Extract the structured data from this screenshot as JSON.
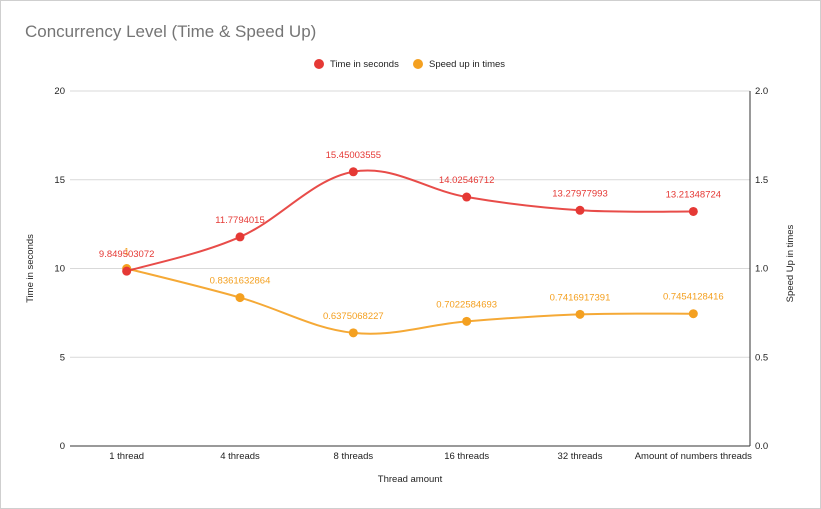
{
  "chart_data": {
    "type": "line",
    "title": "Concurrency Level (Time & Speed Up)",
    "xlabel": "Thread amount",
    "ylabel_left": "Time in seconds",
    "ylabel_right": "Speed Up in times",
    "categories": [
      "1 thread",
      "4 threads",
      "8 threads",
      "16 threads",
      "32 threads",
      "Amount of numbers threads"
    ],
    "ylim_left": [
      0,
      20
    ],
    "yticks_left": [
      "0",
      "5",
      "10",
      "15",
      "20"
    ],
    "ylim_right": [
      0,
      2.0
    ],
    "yticks_right": [
      "0.0",
      "0.5",
      "1.0",
      "1.5",
      "2.0"
    ],
    "grid": true,
    "legend_position": "top",
    "series": [
      {
        "name": "Time in seconds",
        "axis": "left",
        "color": "#e53935",
        "values": [
          9.849503072,
          11.7794015,
          15.45003555,
          14.02546712,
          13.27977993,
          13.21348724
        ],
        "labels": [
          "9.849503072",
          "11.7794015",
          "15.45003555",
          "14.02546712",
          "13.27977993",
          "13.21348724"
        ]
      },
      {
        "name": "Speed up in times",
        "axis": "right",
        "color": "#f4a020",
        "values": [
          1.0,
          0.8361632864,
          0.6375068227,
          0.7022584693,
          0.7416917391,
          0.7454128416
        ],
        "labels": [
          "1",
          "0.8361632864",
          "0.6375068227",
          "0.7022584693",
          "0.7416917391",
          "0.7454128416"
        ]
      }
    ]
  }
}
